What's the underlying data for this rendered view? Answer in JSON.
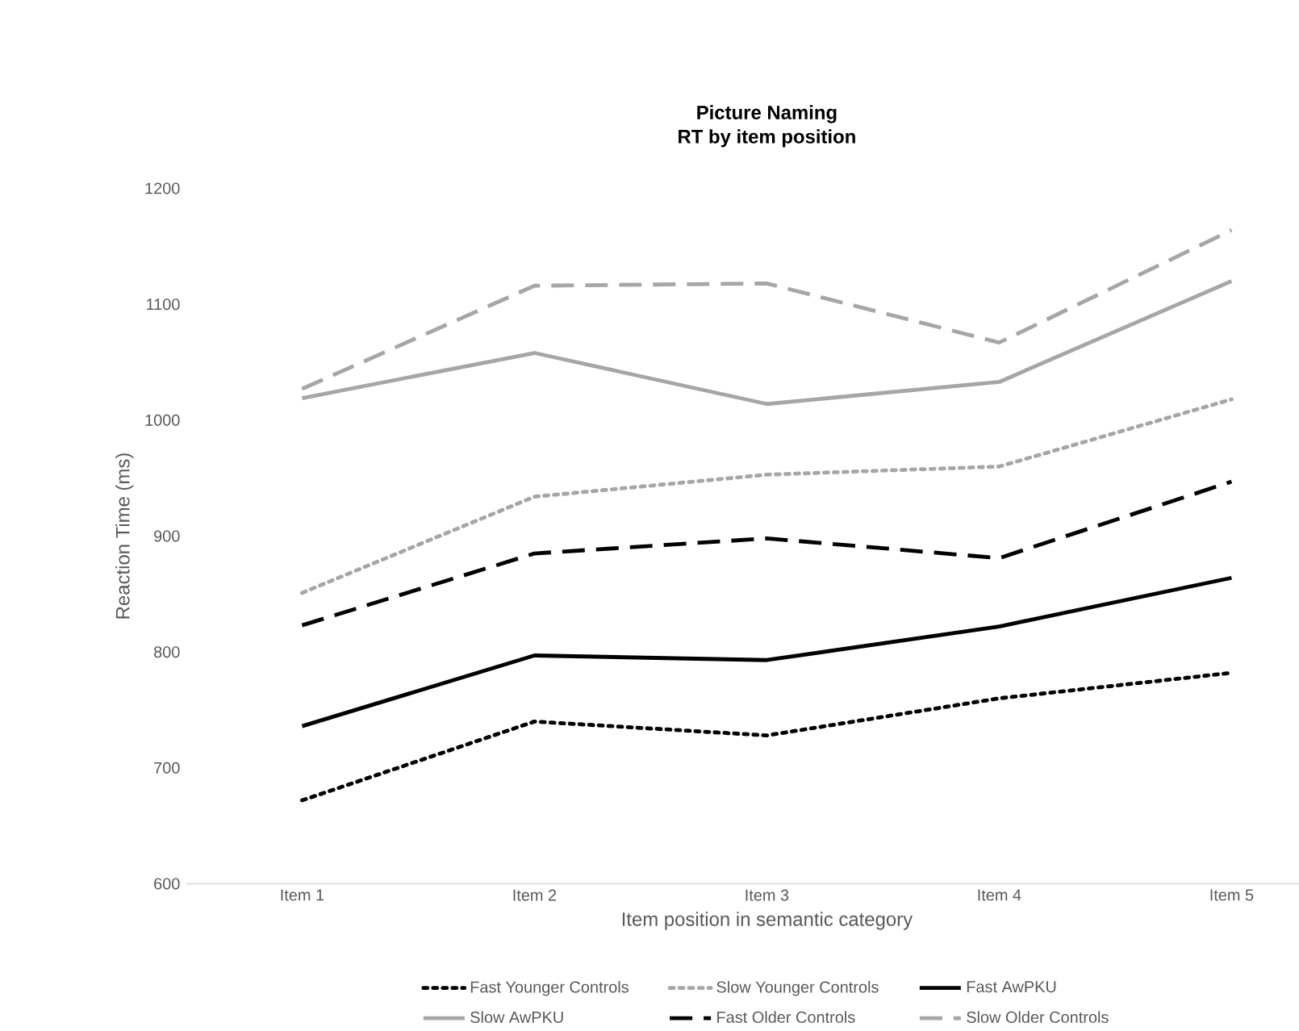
{
  "chart_data": {
    "type": "line",
    "title": "Picture Naming",
    "subtitle": "RT by item position",
    "xlabel": "Item position in semantic category",
    "ylabel": "Reaction Time (ms)",
    "categories": [
      "Item 1",
      "Item 2",
      "Item 3",
      "Item 4",
      "Item 5"
    ],
    "ylim": [
      600,
      1200
    ],
    "yticks": [
      600,
      700,
      800,
      900,
      1000,
      1100,
      1200
    ],
    "grid": false,
    "legend": "bottom",
    "marker": "none",
    "series": [
      {
        "name": "Fast Younger Controls",
        "color": "#000000",
        "line_style": "dotted",
        "values": [
          672,
          740,
          728,
          760,
          782
        ]
      },
      {
        "name": "Slow Younger Controls",
        "color": "#a6a6a6",
        "line_style": "dotted",
        "values": [
          851,
          934,
          953,
          960,
          1018
        ]
      },
      {
        "name": "Fast AwPKU",
        "color": "#000000",
        "line_style": "solid",
        "values": [
          736,
          797,
          793,
          822,
          864
        ]
      },
      {
        "name": "Slow AwPKU",
        "color": "#a6a6a6",
        "line_style": "solid",
        "values": [
          1019,
          1058,
          1014,
          1033,
          1120
        ]
      },
      {
        "name": "Fast Older Controls",
        "color": "#000000",
        "line_style": "dashed",
        "values": [
          823,
          885,
          898,
          881,
          947
        ]
      },
      {
        "name": "Slow Older Controls",
        "color": "#a6a6a6",
        "line_style": "dashed",
        "values": [
          1027,
          1116,
          1118,
          1067,
          1164
        ]
      }
    ]
  }
}
